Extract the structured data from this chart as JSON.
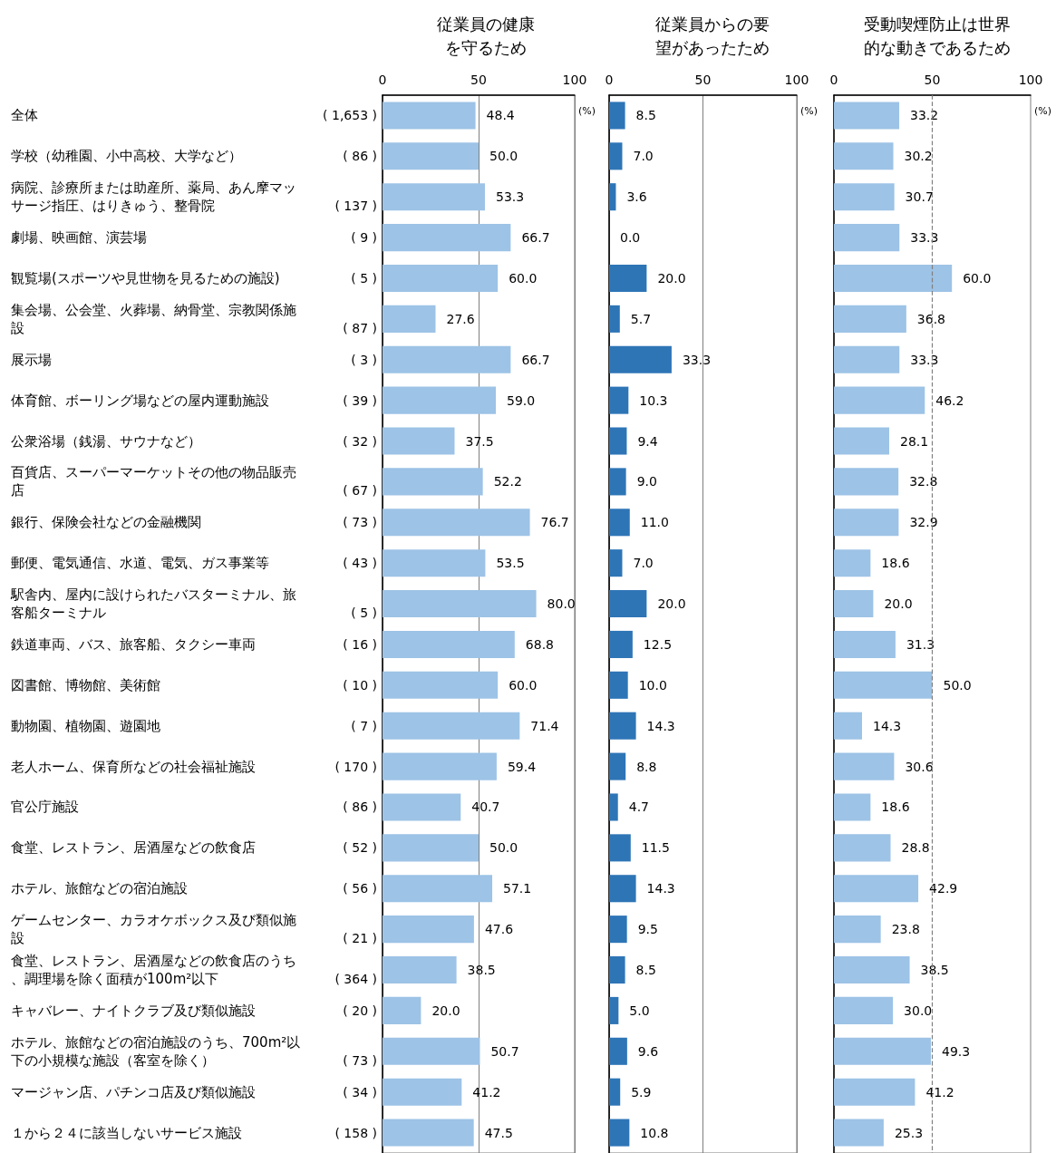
{
  "chart_data": [
    {
      "type": "bar",
      "orientation": "horizontal",
      "title": "従業員の健康を守るため",
      "xlabel": "(%)",
      "categories": [
        "全体 ( 1,653 )",
        "学校（幼稚園、小中高校、大学など） ( 86 )",
        "病院、診療所または助産所、薬局、あん摩マッサージ指圧、はりきゅう、整骨院 ( 137 )",
        "劇場、映画館、演芸場 ( 9 )",
        "観覧場(スポーツや見世物を見るための施設) ( 5 )",
        "集会場、公会堂、火葬場、納骨堂、宗教関係施設 ( 87 )",
        "展示場 ( 3 )",
        "体育館、ボーリング場などの屋内運動施設 ( 39 )",
        "公衆浴場（銭湯、サウナなど） ( 32 )",
        "百貨店、スーパーマーケットその他の物品販売店 ( 67 )",
        "銀行、保険会社などの金融機関 ( 73 )",
        "郵便、電気通信、水道、電気、ガス事業等 ( 43 )",
        "駅舎内、屋内に設けられたバスターミナル、旅客船ターミナル ( 5 )",
        "鉄道車両、バス、旅客船、タクシー車両 ( 16 )",
        "図書館、博物館、美術館 ( 10 )",
        "動物園、植物園、遊園地 ( 7 )",
        "老人ホーム、保育所などの社会福祉施設 ( 170 )",
        "官公庁施設 ( 86 )",
        "食堂、レストラン、居酒屋などの飲食店 ( 52 )",
        "ホテル、旅館などの宿泊施設 ( 56 )",
        "ゲームセンター、カラオケボックス及び類似施設 ( 21 )",
        "食堂、レストラン、居酒屋などの飲食店のうち、調理場を除く面積が100m²以下 ( 364 )",
        "キャバレー、ナイトクラブ及び類似施設 ( 20 )",
        "ホテル、旅館などの宿泊施設のうち、700m²以下の小規模な施設（客室を除く） ( 73 )",
        "マージャン店、パチンコ店及び類似施設 ( 34 )",
        "１から２４に該当しないサービス施設 ( 158 )"
      ],
      "values": [
        48.4,
        50.0,
        53.3,
        66.7,
        60.0,
        27.6,
        66.7,
        59.0,
        37.5,
        52.2,
        76.7,
        53.5,
        80.0,
        68.8,
        60.0,
        71.4,
        59.4,
        40.7,
        50.0,
        57.1,
        47.6,
        38.5,
        20.0,
        50.7,
        41.2,
        47.5
      ],
      "value_labels": [
        "48.4",
        "50.0",
        "53.3",
        "66.7",
        "60.0",
        "27.6",
        "66.7",
        "59.0",
        "37.5",
        "52.2",
        "76.7",
        "53.5",
        "80.0",
        "68.8",
        "60.0",
        "71.4",
        "59.4",
        "40.7",
        "50.0",
        "57.1",
        "47.6",
        "38.5",
        "20.0",
        "50.7",
        "41.2",
        "47.5"
      ],
      "color": "#9dc3e6",
      "xlim": [
        0,
        100
      ],
      "xticks": [
        0,
        50,
        100
      ],
      "grid": "x"
    },
    {
      "type": "bar",
      "orientation": "horizontal",
      "title": "従業員からの要望があったため",
      "xlabel": "(%)",
      "tick_labels": "x",
      "categories": [
        null,
        null,
        null,
        null,
        null,
        null,
        null,
        null,
        null,
        null,
        null,
        null,
        null,
        null,
        null,
        null,
        null,
        null,
        null,
        null,
        null,
        null,
        null,
        null,
        null,
        null
      ],
      "values": [
        8.5,
        7.0,
        3.6,
        0.0,
        20.0,
        5.7,
        33.3,
        10.3,
        9.4,
        9.0,
        11.0,
        7.0,
        20.0,
        12.5,
        10.0,
        14.3,
        8.8,
        4.7,
        11.5,
        14.3,
        9.5,
        8.5,
        5.0,
        9.6,
        5.9,
        10.8
      ],
      "value_labels": [
        "8.5",
        "7.0",
        "3.6",
        "0.0",
        "20.0",
        "5.7",
        "33.3",
        "10.3",
        "9.4",
        "9.0",
        "11.0",
        "7.0",
        "20.0",
        "12.5",
        "10.0",
        "14.3",
        "8.8",
        "4.7",
        "11.5",
        "14.3",
        "9.5",
        "8.5",
        "5.0",
        "9.6",
        "5.9",
        "10.8"
      ],
      "color": "#2e75b6",
      "xlim": [
        0,
        100
      ],
      "xticks": [
        0,
        50,
        100
      ],
      "grid": "x"
    },
    {
      "type": "bar",
      "orientation": "horizontal",
      "title": "受動喫煙防止は世界的な動きであるため",
      "xlabel": "(%)",
      "tick_labels": "x",
      "categories": [
        null,
        null,
        null,
        null,
        null,
        null,
        null,
        null,
        null,
        null,
        null,
        null,
        null,
        null,
        null,
        null,
        null,
        null,
        null,
        null,
        null,
        null,
        null,
        null,
        null,
        null
      ],
      "values": [
        33.2,
        30.2,
        30.7,
        33.3,
        60.0,
        36.8,
        33.3,
        46.2,
        28.1,
        32.8,
        32.9,
        18.6,
        20.0,
        31.3,
        50.0,
        14.3,
        30.6,
        18.6,
        28.8,
        42.9,
        23.8,
        38.5,
        30.0,
        49.3,
        41.2,
        25.3
      ],
      "value_labels": [
        "33.2",
        "30.2",
        "30.7",
        "33.3",
        "60.0",
        "36.8",
        "33.3",
        "46.2",
        "28.1",
        "32.8",
        "32.9",
        "18.6",
        "20.0",
        "31.3",
        "50.0",
        "14.3",
        "30.6",
        "18.6",
        "28.8",
        "42.9",
        "23.8",
        "38.5",
        "30.0",
        "49.3",
        "41.2",
        "25.3"
      ],
      "color": "#9dc3e6",
      "xlim": [
        0,
        100
      ],
      "xticks": [
        0,
        50,
        100
      ],
      "grid": false,
      "ref_lines": [
        {
          "axis": "x",
          "value": 50,
          "label": null,
          "color": "#7f7f7f",
          "line_style": "dashed"
        }
      ]
    }
  ]
}
